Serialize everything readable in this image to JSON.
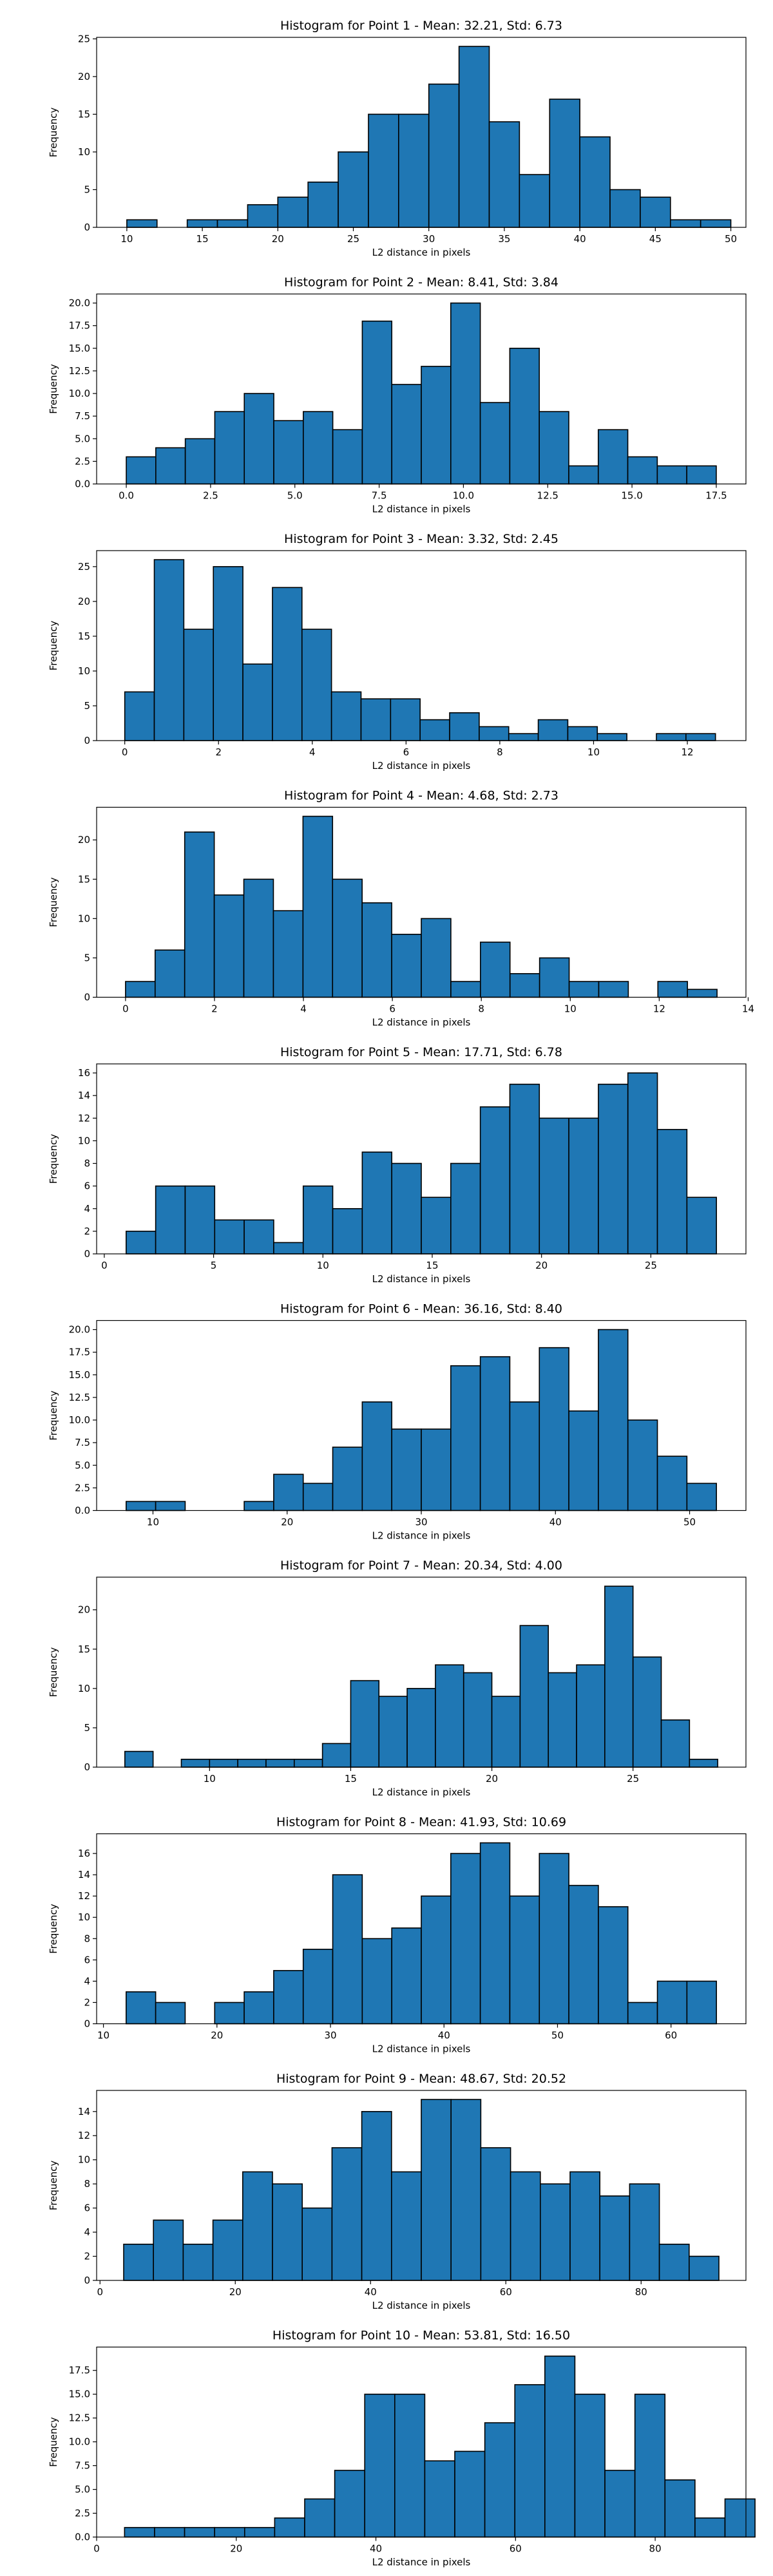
{
  "figure": {
    "background": "#ffffff"
  },
  "style": {
    "bar_fill": "#1f77b4",
    "bar_edge": "#000000",
    "axis_color": "#000000"
  },
  "chart_data": [
    {
      "type": "bar",
      "title": "Histogram for Point 1 - Mean: 32.21, Std: 6.73",
      "xlabel": "L2 distance in pixels",
      "ylabel": "Frequency",
      "xlim": [
        8.0,
        51.0
      ],
      "ylim": [
        0,
        25.2
      ],
      "bin_start": 10.0,
      "bin_width": 2.0,
      "values": [
        1,
        0,
        1,
        1,
        3,
        4,
        6,
        10,
        15,
        15,
        19,
        24,
        14,
        7,
        17,
        12,
        5,
        4,
        1,
        1
      ],
      "xticks": [
        10,
        15,
        20,
        25,
        30,
        35,
        40,
        45,
        50
      ],
      "xtick_labels": [
        "10",
        "15",
        "20",
        "25",
        "30",
        "35",
        "40",
        "45",
        "50"
      ],
      "yticks": [
        0,
        5,
        10,
        15,
        20,
        25
      ],
      "ytick_labels": [
        "0",
        "5",
        "10",
        "15",
        "20",
        "25"
      ]
    },
    {
      "type": "bar",
      "title": "Histogram for Point 2 - Mean: 8.41, Std: 3.84",
      "xlabel": "L2 distance in pixels",
      "ylabel": "Frequency",
      "xlim": [
        -0.88,
        18.38
      ],
      "ylim": [
        0,
        21.0
      ],
      "bin_start": 0.0,
      "bin_width": 0.875,
      "values": [
        3,
        4,
        5,
        8,
        10,
        7,
        8,
        6,
        18,
        11,
        13,
        20,
        9,
        15,
        8,
        2,
        6,
        3,
        2,
        2
      ],
      "xticks": [
        0,
        2.5,
        5,
        7.5,
        10,
        12.5,
        15,
        17.5
      ],
      "xtick_labels": [
        "0.0",
        "2.5",
        "5.0",
        "7.5",
        "10.0",
        "12.5",
        "15.0",
        "17.5"
      ],
      "yticks": [
        0,
        2.5,
        5,
        7.5,
        10,
        12.5,
        15,
        17.5,
        20
      ],
      "ytick_labels": [
        "0.0",
        "2.5",
        "5.0",
        "7.5",
        "10.0",
        "12.5",
        "15.0",
        "17.5",
        "20.0"
      ]
    },
    {
      "type": "bar",
      "title": "Histogram for Point 3 - Mean: 3.32, Std: 2.45",
      "xlabel": "L2 distance in pixels",
      "ylabel": "Frequency",
      "xlim": [
        -0.6,
        13.25
      ],
      "ylim": [
        0,
        27.3
      ],
      "bin_start": 0.0,
      "bin_width": 0.63,
      "values": [
        7,
        26,
        16,
        25,
        11,
        22,
        16,
        7,
        6,
        6,
        3,
        4,
        2,
        1,
        3,
        2,
        1,
        0,
        1,
        1
      ],
      "xticks": [
        0,
        2,
        4,
        6,
        8,
        10,
        12
      ],
      "xtick_labels": [
        "0",
        "2",
        "4",
        "6",
        "8",
        "10",
        "12"
      ],
      "yticks": [
        0,
        5,
        10,
        15,
        20,
        25
      ],
      "ytick_labels": [
        "0",
        "5",
        "10",
        "15",
        "20",
        "25"
      ]
    },
    {
      "type": "bar",
      "title": "Histogram for Point 4 - Mean: 4.68, Std: 2.73",
      "xlabel": "L2 distance in pixels",
      "ylabel": "Frequency",
      "xlim": [
        -0.65,
        13.95
      ],
      "ylim": [
        0,
        24.15
      ],
      "bin_start": 0.0,
      "bin_width": 0.665,
      "values": [
        2,
        6,
        21,
        13,
        15,
        11,
        23,
        15,
        12,
        8,
        10,
        2,
        7,
        3,
        5,
        2,
        2,
        0,
        2,
        1
      ],
      "xticks": [
        0,
        2,
        4,
        6,
        8,
        10,
        12,
        14
      ],
      "xtick_labels": [
        "0",
        "2",
        "4",
        "6",
        "8",
        "10",
        "12",
        "14"
      ],
      "yticks": [
        0,
        5,
        10,
        15,
        20
      ],
      "ytick_labels": [
        "0",
        "5",
        "10",
        "15",
        "20"
      ]
    },
    {
      "type": "bar",
      "title": "Histogram for Point 5 - Mean: 17.71, Std: 6.78",
      "xlabel": "L2 distance in pixels",
      "ylabel": "Frequency",
      "xlim": [
        -0.35,
        29.35
      ],
      "ylim": [
        0,
        16.8
      ],
      "bin_start": 1.0,
      "bin_width": 1.35,
      "values": [
        2,
        6,
        6,
        3,
        3,
        1,
        6,
        4,
        9,
        8,
        5,
        8,
        13,
        15,
        12,
        12,
        15,
        16,
        11,
        5
      ],
      "xticks": [
        0,
        5,
        10,
        15,
        20,
        25
      ],
      "xtick_labels": [
        "0",
        "5",
        "10",
        "15",
        "20",
        "25"
      ],
      "yticks": [
        0,
        2,
        4,
        6,
        8,
        10,
        12,
        14,
        16
      ],
      "ytick_labels": [
        "0",
        "2",
        "4",
        "6",
        "8",
        "10",
        "12",
        "14",
        "16"
      ]
    },
    {
      "type": "bar",
      "title": "Histogram for Point 6 - Mean: 36.16, Std: 8.40",
      "xlabel": "L2 distance in pixels",
      "ylabel": "Frequency",
      "xlim": [
        5.8,
        54.2
      ],
      "ylim": [
        0,
        21.0
      ],
      "bin_start": 8.0,
      "bin_width": 2.2,
      "values": [
        1,
        1,
        0,
        0,
        1,
        4,
        3,
        7,
        12,
        9,
        9,
        16,
        17,
        12,
        18,
        11,
        20,
        10,
        6,
        3
      ],
      "xticks": [
        10,
        20,
        30,
        40,
        50
      ],
      "xtick_labels": [
        "10",
        "20",
        "30",
        "40",
        "50"
      ],
      "yticks": [
        0,
        2.5,
        5,
        7.5,
        10,
        12.5,
        15,
        17.5,
        20
      ],
      "ytick_labels": [
        "0.0",
        "2.5",
        "5.0",
        "7.5",
        "10.0",
        "12.5",
        "15.0",
        "17.5",
        "20.0"
      ]
    },
    {
      "type": "bar",
      "title": "Histogram for Point 7 - Mean: 20.34, Std: 4.00",
      "xlabel": "L2 distance in pixels",
      "ylabel": "Frequency",
      "xlim": [
        6.0,
        29.0
      ],
      "ylim": [
        0,
        24.15
      ],
      "bin_start": 7.0,
      "bin_width": 1.0,
      "values": [
        2,
        0,
        1,
        1,
        1,
        1,
        1,
        3,
        11,
        9,
        10,
        13,
        12,
        9,
        18,
        12,
        13,
        23,
        14,
        6,
        1
      ],
      "xticks": [
        10,
        15,
        20,
        25
      ],
      "xtick_labels": [
        "10",
        "15",
        "20",
        "25"
      ],
      "yticks": [
        0,
        5,
        10,
        15,
        20
      ],
      "ytick_labels": [
        "0",
        "5",
        "10",
        "15",
        "20"
      ]
    },
    {
      "type": "bar",
      "title": "Histogram for Point 8 - Mean: 41.93, Std: 10.69",
      "xlabel": "L2 distance in pixels",
      "ylabel": "Frequency",
      "xlim": [
        9.4,
        66.6
      ],
      "ylim": [
        0,
        17.85
      ],
      "bin_start": 12.0,
      "bin_width": 2.6,
      "values": [
        3,
        2,
        0,
        2,
        3,
        5,
        7,
        14,
        8,
        9,
        12,
        16,
        17,
        12,
        16,
        13,
        11,
        2,
        4,
        4
      ],
      "xticks": [
        10,
        20,
        30,
        40,
        50,
        60
      ],
      "xtick_labels": [
        "10",
        "20",
        "30",
        "40",
        "50",
        "60"
      ],
      "yticks": [
        0,
        2,
        4,
        6,
        8,
        10,
        12,
        14,
        16
      ],
      "ytick_labels": [
        "0",
        "2",
        "4",
        "6",
        "8",
        "10",
        "12",
        "14",
        "16"
      ]
    },
    {
      "type": "bar",
      "title": "Histogram for Point 9 - Mean: 48.67, Std: 20.52",
      "xlabel": "L2 distance in pixels",
      "ylabel": "Frequency",
      "xlim": [
        -0.5,
        95.5
      ],
      "ylim": [
        0,
        15.75
      ],
      "bin_start": 3.5,
      "bin_width": 4.4,
      "values": [
        3,
        5,
        3,
        5,
        9,
        8,
        6,
        11,
        14,
        9,
        15,
        15,
        11,
        9,
        8,
        9,
        7,
        8,
        3,
        2
      ],
      "xticks": [
        0,
        20,
        40,
        60,
        80
      ],
      "xtick_labels": [
        "0",
        "20",
        "40",
        "60",
        "80"
      ],
      "yticks": [
        0,
        2,
        4,
        6,
        8,
        10,
        12,
        14
      ],
      "ytick_labels": [
        "0",
        "2",
        "4",
        "6",
        "8",
        "10",
        "12",
        "14"
      ]
    },
    {
      "type": "bar",
      "title": "Histogram for Point 10 - Mean: 53.81, Std: 16.50",
      "xlabel": "L2 distance in pixels",
      "ylabel": "Frequency",
      "xlim": [
        0.0,
        93.0
      ],
      "ylim": [
        0,
        19.95
      ],
      "bin_start": 4.0,
      "bin_width": 4.3,
      "values": [
        1,
        1,
        1,
        1,
        1,
        2,
        4,
        7,
        15,
        15,
        8,
        9,
        12,
        16,
        19,
        15,
        7,
        15,
        6,
        2,
        4
      ],
      "xticks": [
        0,
        20,
        40,
        60,
        80
      ],
      "xtick_labels": [
        "0",
        "20",
        "40",
        "60",
        "80"
      ],
      "yticks": [
        0,
        2.5,
        5,
        7.5,
        10,
        12.5,
        15,
        17.5
      ],
      "ytick_labels": [
        "0.0",
        "2.5",
        "5.0",
        "7.5",
        "10.0",
        "12.5",
        "15.0",
        "17.5"
      ]
    }
  ]
}
